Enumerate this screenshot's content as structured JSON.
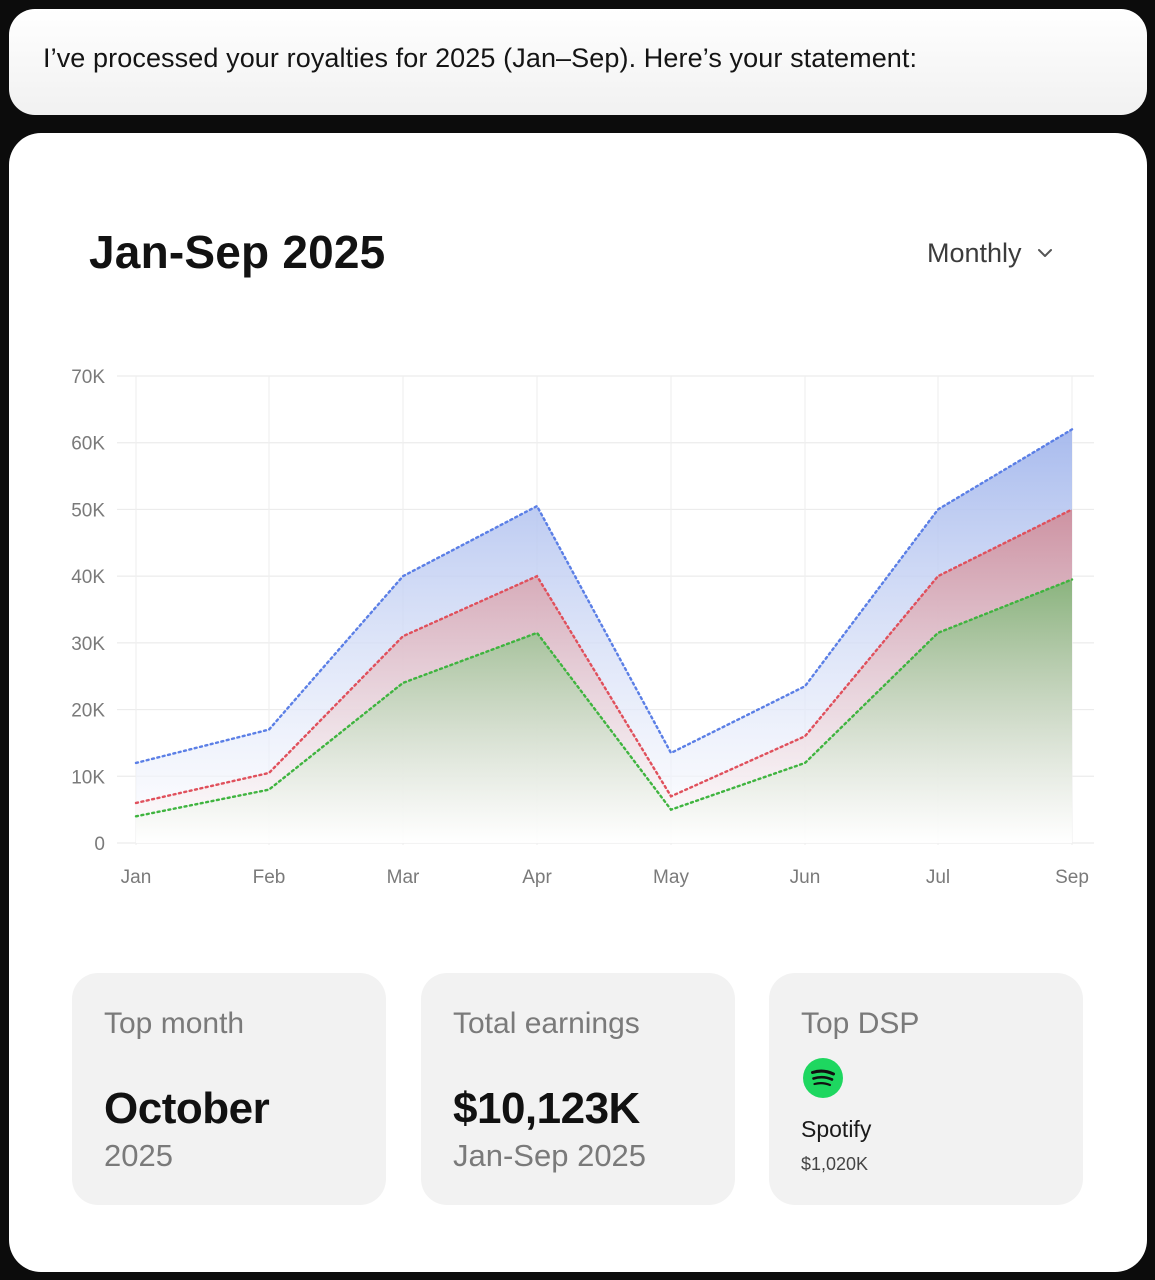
{
  "message": {
    "text": "I’ve processed your royalties for 2025 (Jan–Sep). Here’s your statement:"
  },
  "card": {
    "title": "Jan-Sep 2025",
    "period_select": {
      "value": "Monthly",
      "icon": "chevron-down-icon"
    }
  },
  "chart_data": {
    "type": "area",
    "categories": [
      "Jan",
      "Feb",
      "Mar",
      "Apr",
      "May",
      "Jun",
      "Jul",
      "Sep"
    ],
    "y_ticks": [
      "0",
      "10K",
      "20K",
      "30K",
      "40K",
      "50K",
      "60K",
      "70K"
    ],
    "ylim": [
      0,
      70000
    ],
    "grid": true,
    "series": [
      {
        "values": [
          12000,
          17000,
          40000,
          50500,
          13500,
          23500,
          50000,
          62000
        ],
        "color": "#5b7fe6"
      },
      {
        "values": [
          6000,
          10500,
          31000,
          40000,
          7000,
          16000,
          40000,
          50000
        ],
        "color": "#e0505c"
      },
      {
        "values": [
          4000,
          8000,
          24000,
          31500,
          5000,
          12000,
          31500,
          39500
        ],
        "color": "#3fb43f"
      }
    ]
  },
  "stats": {
    "top_month": {
      "label": "Top month",
      "value": "October",
      "sub": "2025"
    },
    "total_earnings": {
      "label": "Total earnings",
      "value": "$10,123K",
      "sub": "Jan-Sep 2025"
    },
    "top_dsp": {
      "label": "Top DSP",
      "icon": "spotify-icon",
      "name": "Spotify",
      "amount": "$1,020K",
      "brand_color": "#1ed760"
    }
  }
}
